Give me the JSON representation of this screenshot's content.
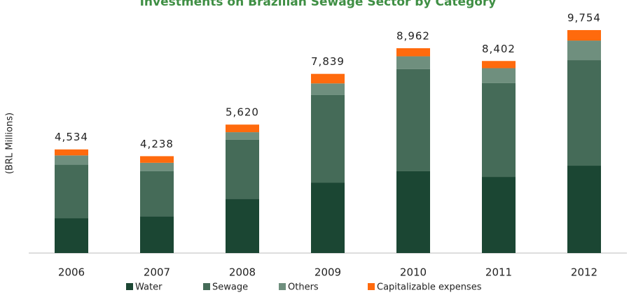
{
  "chart_data": {
    "type": "stacked_bar",
    "title": "Investments on Brazilian Sewage Sector by Category",
    "y_label": "(BRL Millions)",
    "categories": [
      "2006",
      "2007",
      "2008",
      "2009",
      "2010",
      "2011",
      "2012"
    ],
    "series": [
      {
        "name": "Water",
        "color": "#1b4633",
        "values": [
          1527,
          1613,
          2376,
          3086,
          3579,
          3332,
          3822
        ]
      },
      {
        "name": "Sewage",
        "color": "#456b58",
        "values": [
          2339,
          1975,
          2580,
          3836,
          4466,
          4101,
          4617
        ]
      },
      {
        "name": "Others",
        "color": "#6f8f7e",
        "values": [
          406,
          361,
          332,
          500,
          562,
          655,
          856
        ]
      },
      {
        "name": "Capitalizable expenses",
        "color": "#ff6a0d",
        "values": [
          262,
          289,
          332,
          417,
          355,
          314,
          459
        ]
      }
    ],
    "totals": [
      4534,
      4238,
      5620,
      7839,
      8962,
      8402,
      9754
    ],
    "total_labels": [
      "4,534",
      "4,238",
      "5,620",
      "7,839",
      "8,962",
      "8,402",
      "9,754"
    ],
    "ylim": [
      0,
      10000
    ]
  }
}
